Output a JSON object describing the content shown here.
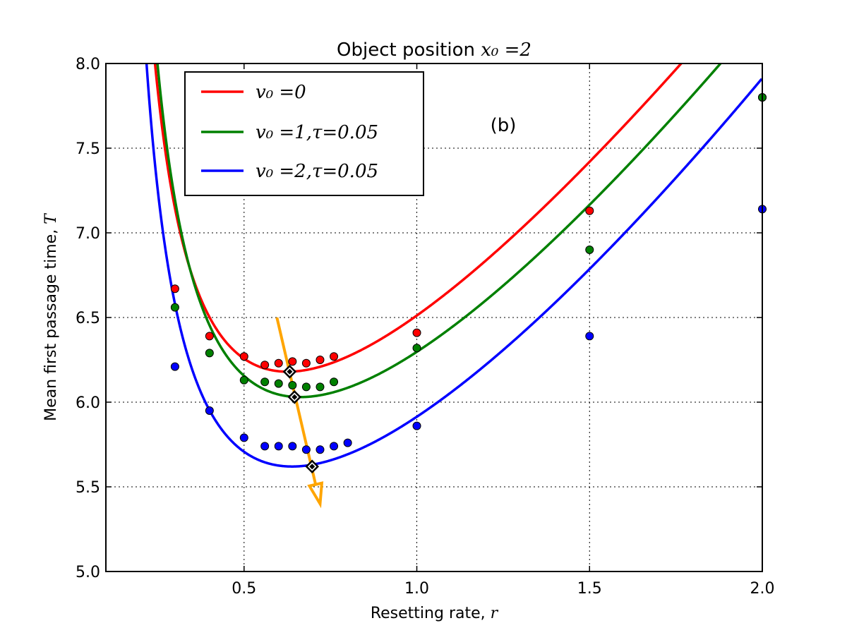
{
  "chart_data": {
    "type": "line",
    "title": "Object position x₀ =2",
    "title_prefix": "Object position ",
    "title_math": "x₀ =2",
    "xlabel": "Resetting rate, ",
    "xlabel_math": "r",
    "ylabel": "Mean first passage time, ",
    "ylabel_math": "T",
    "panel_label": "(b)",
    "xlim": [
      0.1,
      2.0
    ],
    "ylim": [
      5.0,
      8.0
    ],
    "xticks": [
      0.5,
      1.0,
      1.5,
      2.0
    ],
    "xtick_labels": [
      "0.5",
      "1.0",
      "1.5",
      "2.0"
    ],
    "yticks": [
      5.0,
      5.5,
      6.0,
      6.5,
      7.0,
      7.5,
      8.0
    ],
    "ytick_labels": [
      "5.0",
      "5.5",
      "6.0",
      "6.5",
      "7.0",
      "7.5",
      "8.0"
    ],
    "grid": true,
    "legend_position": "top-left",
    "series": [
      {
        "name": "v₀ =0",
        "legend_label": "v₀ =0",
        "color": "#ff0000",
        "curve": {
          "A": 0.52,
          "B": 1.6,
          "r0": 0.0895,
          "p": 1.3
        },
        "sim_x": [
          0.3,
          0.4,
          0.5,
          0.56,
          0.6,
          0.64,
          0.68,
          0.72,
          0.76,
          1.0,
          1.5,
          2.0
        ],
        "sim_y": [
          6.67,
          6.39,
          6.27,
          6.22,
          6.23,
          6.24,
          6.23,
          6.25,
          6.27,
          6.41,
          7.13,
          7.8
        ],
        "min_x": 0.632,
        "min_y": 6.18
      },
      {
        "name": "v₀ =1,τ=0.05",
        "legend_label": "v₀ =1,τ=0.05",
        "color": "#008000",
        "curve": {
          "A": 0.573,
          "B": 1.498,
          "r0": 0.0902,
          "p": 1.35
        },
        "sim_x": [
          0.3,
          0.4,
          0.5,
          0.56,
          0.6,
          0.64,
          0.68,
          0.72,
          0.76,
          1.0,
          1.5,
          2.0
        ],
        "sim_y": [
          6.56,
          6.29,
          6.13,
          6.12,
          6.11,
          6.1,
          6.09,
          6.09,
          6.12,
          6.32,
          6.9,
          7.8
        ],
        "min_x": 0.646,
        "min_y": 6.03
      },
      {
        "name": "v₀ =2,τ=0.05",
        "legend_label": "v₀ =2,τ=0.05",
        "color": "#0000ff",
        "curve": {
          "A": 0.49,
          "B": 1.392,
          "r0": 0.0905,
          "p": 1.4
        },
        "sim_x": [
          0.3,
          0.4,
          0.5,
          0.56,
          0.6,
          0.64,
          0.68,
          0.72,
          0.76,
          0.8,
          1.0,
          1.5,
          2.0
        ],
        "sim_y": [
          6.21,
          5.95,
          5.79,
          5.74,
          5.74,
          5.74,
          5.72,
          5.72,
          5.74,
          5.76,
          5.86,
          6.39,
          7.14
        ],
        "min_x": 0.697,
        "min_y": 5.62
      }
    ],
    "arrow": {
      "color": "#ffa500",
      "from": [
        0.595,
        6.5
      ],
      "to": [
        0.72,
        5.4
      ]
    },
    "minimum_marker_color": "#000000"
  }
}
